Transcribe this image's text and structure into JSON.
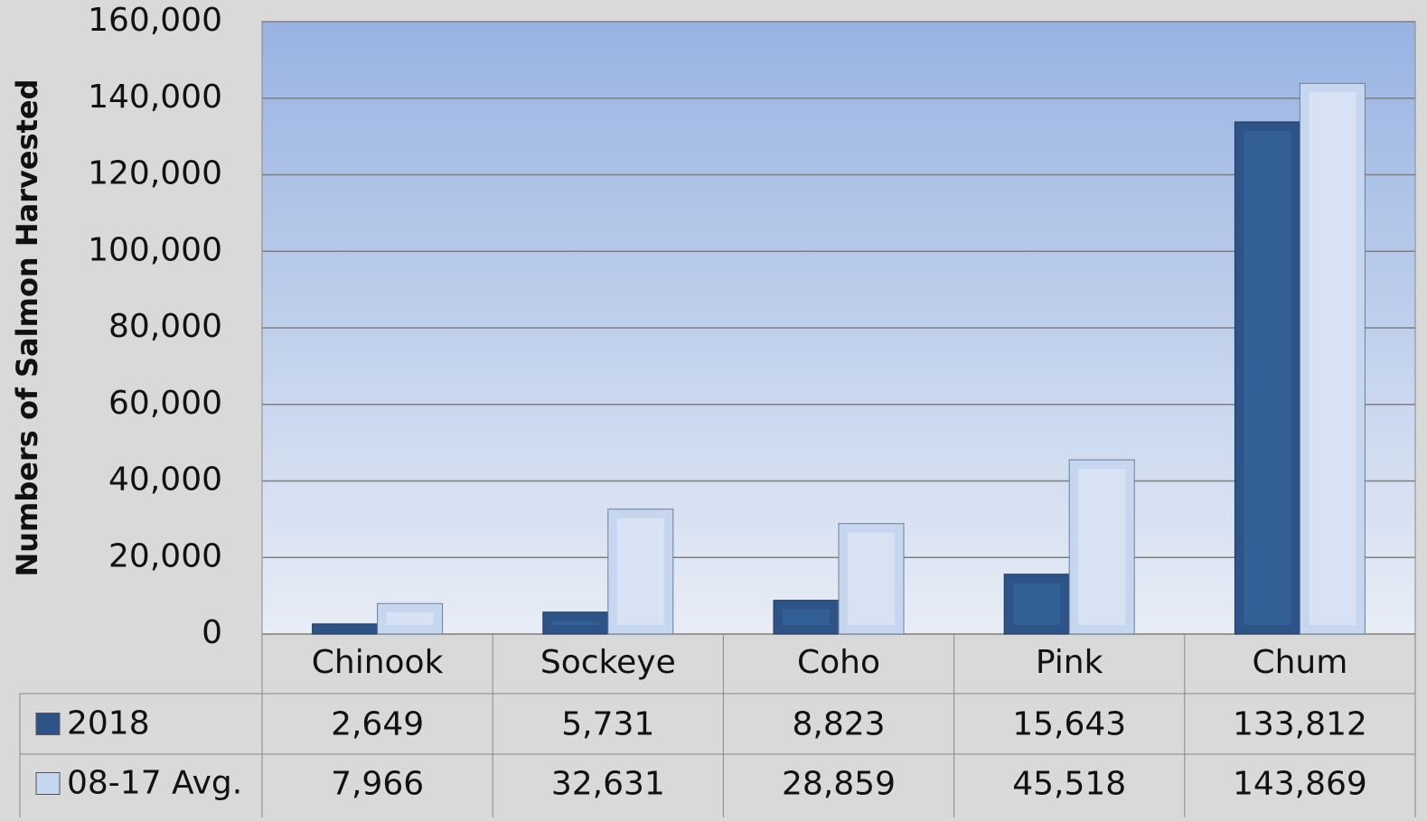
{
  "chart_data": {
    "type": "bar",
    "y_label": "Numbers of Salmon Harvested",
    "categories": [
      "Chinook",
      "Sockeye",
      "Coho",
      "Pink",
      "Chum"
    ],
    "series": [
      {
        "name": "2018",
        "color": "#2e5487",
        "values": [
          2649,
          5731,
          8823,
          15643,
          133812
        ],
        "value_labels": [
          "2,649",
          "5,731",
          "8,823",
          "15,643",
          "133,812"
        ]
      },
      {
        "name": "08-17 Avg.",
        "color": "#c5d6ee",
        "values": [
          7966,
          32631,
          28859,
          45518,
          143869
        ],
        "value_labels": [
          "7,966",
          "32,631",
          "28,859",
          "45,518",
          "143,869"
        ]
      }
    ],
    "ylim": [
      0,
      160000
    ],
    "yticks": [
      0,
      {
        "value": 20000,
        "label": "20,000"
      },
      {
        "value": 40000,
        "label": "40,000"
      },
      {
        "value": 60000,
        "label": "60,000"
      },
      {
        "value": 80000,
        "label": "80,000"
      },
      {
        "value": 100000,
        "label": "100,000"
      },
      {
        "value": 120000,
        "label": "120,000"
      },
      {
        "value": 140000,
        "label": "140,000"
      },
      {
        "value": 160000,
        "label": "160,000"
      }
    ],
    "grid": true
  }
}
